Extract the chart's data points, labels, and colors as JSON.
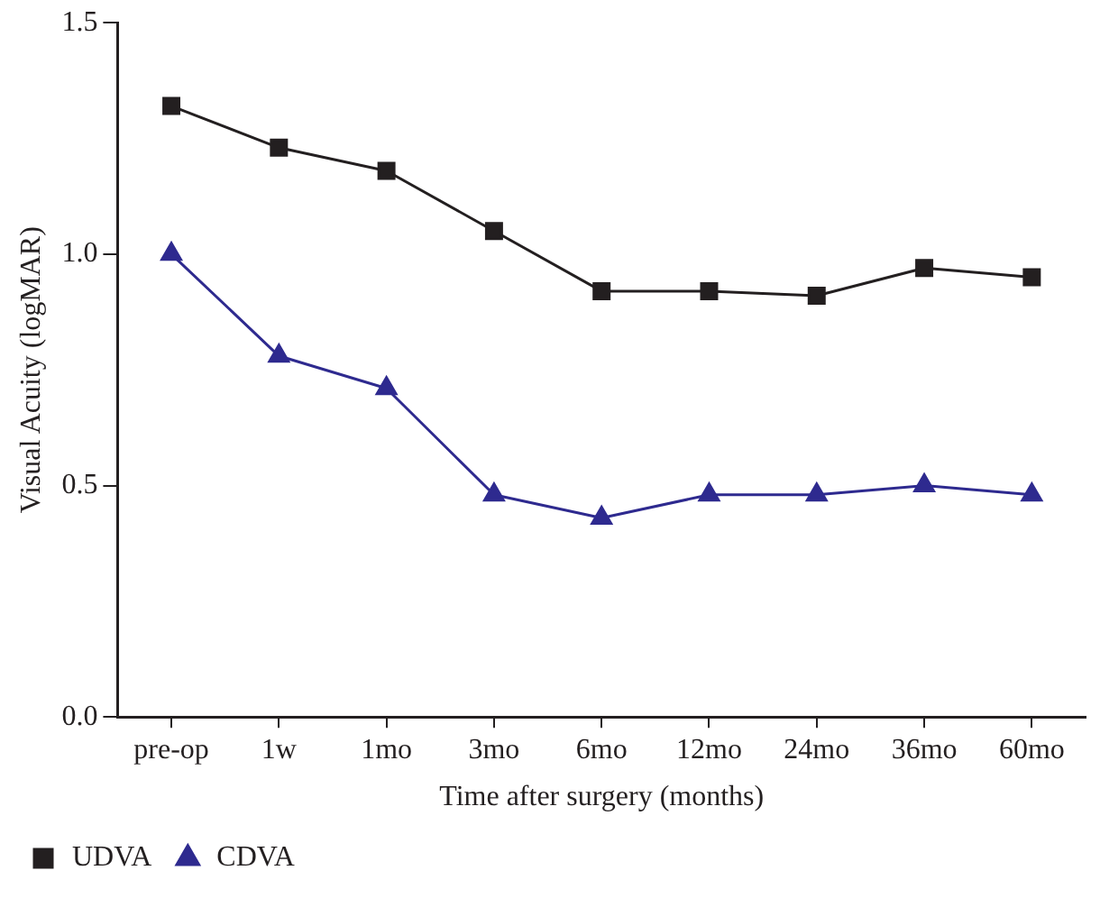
{
  "chart_data": {
    "type": "line",
    "xlabel": "Time after surgery (months)",
    "ylabel": "Visual Acuity (logMAR)",
    "categories": [
      "pre-op",
      "1w",
      "1mo",
      "3mo",
      "6mo",
      "12mo",
      "24mo",
      "36mo",
      "60mo"
    ],
    "series": [
      {
        "name": "UDVA",
        "color": "#231f20",
        "marker": "square",
        "values": [
          1.32,
          1.23,
          1.18,
          1.05,
          0.92,
          0.92,
          0.91,
          0.97,
          0.95
        ]
      },
      {
        "name": "CDVA",
        "color": "#2e2a8f",
        "marker": "triangle",
        "values": [
          1.0,
          0.78,
          0.71,
          0.48,
          0.43,
          0.48,
          0.48,
          0.5,
          0.48
        ]
      }
    ],
    "ylim": [
      0,
      1.5
    ],
    "yticks": [
      {
        "value": 0,
        "label": "0.0"
      },
      0.5,
      {
        "value": 1,
        "label": "1.0"
      },
      1.5
    ],
    "grid": false,
    "legend": "bottom left",
    "line_style": "solid"
  }
}
